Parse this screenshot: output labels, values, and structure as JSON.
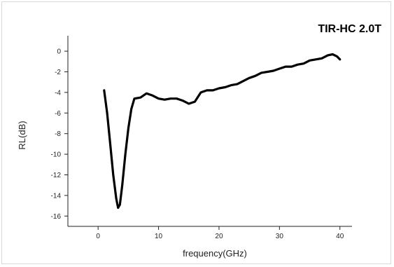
{
  "chart_data": {
    "type": "line",
    "title": "TIR-HC 2.0T",
    "xlabel": "frequency(GHz)",
    "ylabel": "RL(dB)",
    "xlim": [
      -5,
      42
    ],
    "ylim": [
      -17,
      1.5
    ],
    "x_ticks": [
      0,
      10,
      20,
      30,
      40
    ],
    "y_ticks": [
      0,
      -2,
      -4,
      -6,
      -8,
      -10,
      -12,
      -14,
      -16
    ],
    "grid": false,
    "series": [
      {
        "color": "#000000",
        "points": [
          [
            1,
            -3.8
          ],
          [
            1.5,
            -6.0
          ],
          [
            2,
            -9.0
          ],
          [
            2.5,
            -12.0
          ],
          [
            3,
            -14.3
          ],
          [
            3.3,
            -15.2
          ],
          [
            3.6,
            -14.9
          ],
          [
            4,
            -13.0
          ],
          [
            4.5,
            -10.0
          ],
          [
            5,
            -7.5
          ],
          [
            5.5,
            -5.6
          ],
          [
            6,
            -4.6
          ],
          [
            7,
            -4.5
          ],
          [
            8,
            -4.1
          ],
          [
            9,
            -4.3
          ],
          [
            10,
            -4.6
          ],
          [
            11,
            -4.7
          ],
          [
            12,
            -4.6
          ],
          [
            13,
            -4.6
          ],
          [
            14,
            -4.8
          ],
          [
            15,
            -5.1
          ],
          [
            16,
            -4.9
          ],
          [
            17,
            -4.0
          ],
          [
            18,
            -3.8
          ],
          [
            19,
            -3.8
          ],
          [
            20,
            -3.6
          ],
          [
            21,
            -3.5
          ],
          [
            22,
            -3.3
          ],
          [
            23,
            -3.2
          ],
          [
            24,
            -2.9
          ],
          [
            25,
            -2.6
          ],
          [
            26,
            -2.4
          ],
          [
            27,
            -2.1
          ],
          [
            28,
            -2.0
          ],
          [
            29,
            -1.9
          ],
          [
            30,
            -1.7
          ],
          [
            31,
            -1.5
          ],
          [
            32,
            -1.5
          ],
          [
            33,
            -1.3
          ],
          [
            34,
            -1.2
          ],
          [
            35,
            -0.9
          ],
          [
            36,
            -0.8
          ],
          [
            37,
            -0.7
          ],
          [
            38,
            -0.4
          ],
          [
            38.8,
            -0.3
          ],
          [
            39.5,
            -0.5
          ],
          [
            40,
            -0.8
          ]
        ]
      }
    ]
  }
}
